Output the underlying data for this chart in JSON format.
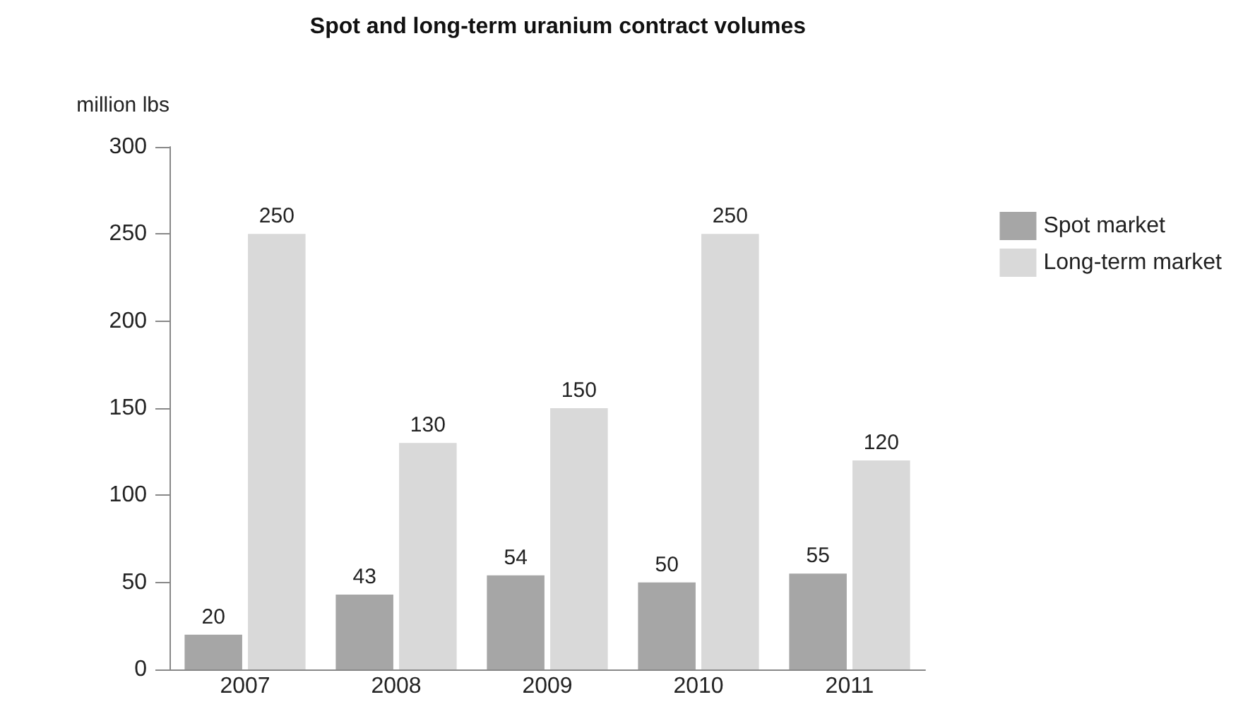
{
  "chart_data": {
    "type": "bar",
    "title": "Spot and long-term uranium contract volumes",
    "ylabel": "million lbs",
    "categories": [
      "2007",
      "2008",
      "2009",
      "2010",
      "2011"
    ],
    "series": [
      {
        "name": "Spot market",
        "color": "#a6a6a6",
        "values": [
          20,
          43,
          54,
          50,
          55
        ]
      },
      {
        "name": "Long-term market",
        "color": "#d9d9d9",
        "values": [
          250,
          130,
          150,
          250,
          120
        ]
      }
    ],
    "ylim": [
      0,
      300
    ],
    "yticks": [
      0,
      50,
      100,
      150,
      200,
      250,
      300
    ],
    "grid": false,
    "legend": "right",
    "data_labels": true
  }
}
